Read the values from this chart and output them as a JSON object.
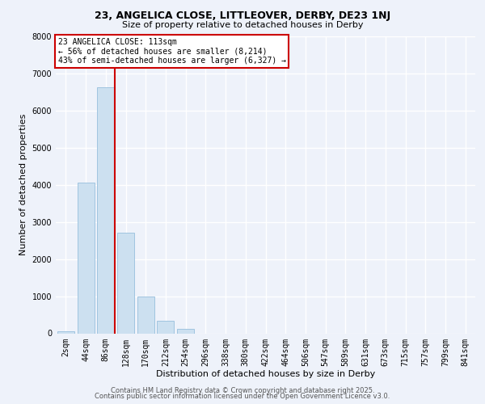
{
  "title1": "23, ANGELICA CLOSE, LITTLEOVER, DERBY, DE23 1NJ",
  "title2": "Size of property relative to detached houses in Derby",
  "xlabel": "Distribution of detached houses by size in Derby",
  "ylabel": "Number of detached properties",
  "bin_labels": [
    "2sqm",
    "44sqm",
    "86sqm",
    "128sqm",
    "170sqm",
    "212sqm",
    "254sqm",
    "296sqm",
    "338sqm",
    "380sqm",
    "422sqm",
    "464sqm",
    "506sqm",
    "547sqm",
    "589sqm",
    "631sqm",
    "673sqm",
    "715sqm",
    "757sqm",
    "799sqm",
    "841sqm"
  ],
  "bar_values": [
    50,
    4050,
    6620,
    2700,
    980,
    340,
    120,
    0,
    0,
    0,
    0,
    0,
    0,
    0,
    0,
    0,
    0,
    0,
    0,
    0,
    0
  ],
  "bar_color": "#cce0f0",
  "bar_edgecolor": "#a0c4e0",
  "vline_color": "#cc0000",
  "vline_pos": 2.45,
  "ylim": [
    0,
    8000
  ],
  "yticks": [
    0,
    1000,
    2000,
    3000,
    4000,
    5000,
    6000,
    7000,
    8000
  ],
  "annotation_title": "23 ANGELICA CLOSE: 113sqm",
  "annotation_line1": "← 56% of detached houses are smaller (8,214)",
  "annotation_line2": "43% of semi-detached houses are larger (6,327) →",
  "annotation_box_color": "#ffffff",
  "annotation_box_edgecolor": "#cc0000",
  "footer1": "Contains HM Land Registry data © Crown copyright and database right 2025.",
  "footer2": "Contains public sector information licensed under the Open Government Licence v3.0.",
  "bg_color": "#eef2fa",
  "grid_color": "#ffffff",
  "title_fontsize": 9,
  "subtitle_fontsize": 8,
  "axis_label_fontsize": 8,
  "tick_fontsize": 7,
  "footer_fontsize": 6,
  "annotation_fontsize": 7
}
